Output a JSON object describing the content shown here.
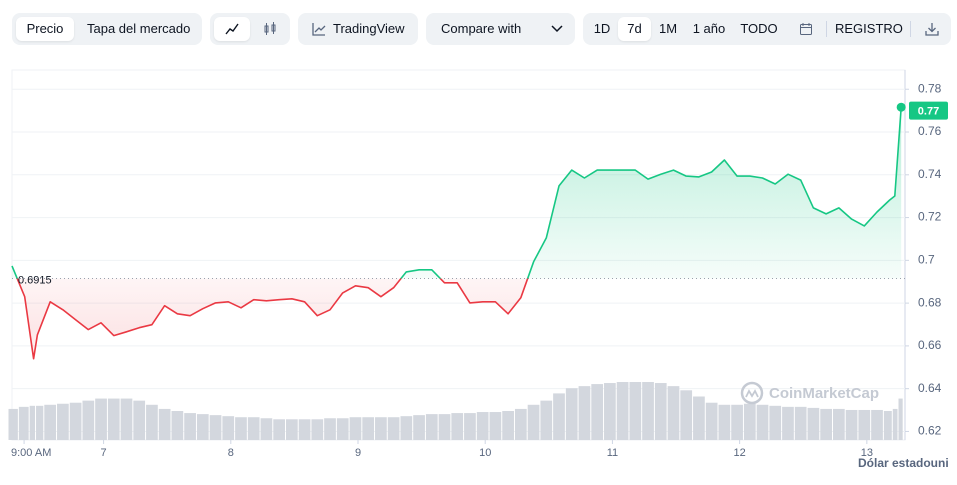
{
  "toolbar": {
    "tabs": [
      "Precio",
      "Tapa del mercado"
    ],
    "tradingview": "TradingView",
    "compare": "Compare with",
    "ranges": [
      "1D",
      "7d",
      "1M",
      "1 año",
      "TODO"
    ],
    "log": "REGISTRO"
  },
  "chart_data": {
    "type": "line",
    "x": [
      6.28,
      6.38,
      6.45,
      6.48,
      6.58,
      6.68,
      6.78,
      6.88,
      6.98,
      7.08,
      7.18,
      7.28,
      7.38,
      7.48,
      7.58,
      7.68,
      7.78,
      7.88,
      7.98,
      8.08,
      8.18,
      8.28,
      8.38,
      8.48,
      8.58,
      8.68,
      8.78,
      8.88,
      8.98,
      9.08,
      9.18,
      9.28,
      9.38,
      9.48,
      9.58,
      9.68,
      9.78,
      9.88,
      9.98,
      10.08,
      10.18,
      10.28,
      10.38,
      10.48,
      10.58,
      10.68,
      10.78,
      10.88,
      10.98,
      11.08,
      11.18,
      11.28,
      11.38,
      11.48,
      11.58,
      11.68,
      11.78,
      11.88,
      11.98,
      12.08,
      12.18,
      12.28,
      12.38,
      12.48,
      12.58,
      12.68,
      12.78,
      12.88,
      12.98,
      13.08,
      13.18,
      13.22,
      13.27
    ],
    "values": [
      0.6974,
      0.683,
      0.654,
      0.6652,
      0.6806,
      0.6769,
      0.6722,
      0.6676,
      0.6708,
      0.6648,
      0.6666,
      0.6685,
      0.6699,
      0.6788,
      0.675,
      0.6741,
      0.6774,
      0.6801,
      0.6806,
      0.6778,
      0.6816,
      0.6811,
      0.6816,
      0.682,
      0.6806,
      0.6741,
      0.6769,
      0.6848,
      0.6881,
      0.6872,
      0.683,
      0.6872,
      0.6946,
      0.6956,
      0.6956,
      0.6895,
      0.6895,
      0.6801,
      0.6806,
      0.6806,
      0.675,
      0.6825,
      0.6993,
      0.7105,
      0.7348,
      0.7422,
      0.7385,
      0.7422,
      0.7422,
      0.7422,
      0.7422,
      0.738,
      0.7403,
      0.7422,
      0.7394,
      0.739,
      0.7413,
      0.7469,
      0.7394,
      0.7394,
      0.7385,
      0.7357,
      0.7403,
      0.7375,
      0.7245,
      0.7217,
      0.7245,
      0.7193,
      0.7161,
      0.7226,
      0.7282,
      0.7301,
      0.7716
    ],
    "volume": [
      30,
      32,
      33,
      33,
      34,
      35,
      36,
      38,
      40,
      40,
      40,
      38,
      34,
      30,
      28,
      26,
      25,
      24,
      23,
      22,
      22,
      21,
      20,
      20,
      20,
      20,
      21,
      21,
      22,
      22,
      22,
      22,
      23,
      24,
      25,
      25,
      26,
      26,
      27,
      27,
      28,
      30,
      34,
      38,
      45,
      50,
      52,
      54,
      55,
      56,
      56,
      56,
      55,
      52,
      48,
      42,
      36,
      34,
      34,
      35,
      34,
      33,
      32,
      32,
      31,
      30,
      30,
      29,
      29,
      29,
      28,
      30,
      40
    ],
    "baseline": 0.6915,
    "current_price": 0.77,
    "xlim": [
      6.28,
      13.3
    ],
    "xticks": [
      {
        "value": 6.375,
        "label": "9:00 AM"
      },
      7,
      8,
      9,
      10,
      11,
      12,
      13
    ],
    "ylim": [
      0.616,
      0.789
    ],
    "yticks": [
      0.62,
      0.64,
      0.66,
      0.68,
      0.7,
      0.72,
      0.74,
      0.76,
      0.78
    ],
    "up_color": "#16c784",
    "down_color": "#ea3943",
    "volume_color": "#d3d7de",
    "grid": true,
    "watermark": "CoinMarketCap",
    "currency_label": "Dólar estadouni"
  }
}
